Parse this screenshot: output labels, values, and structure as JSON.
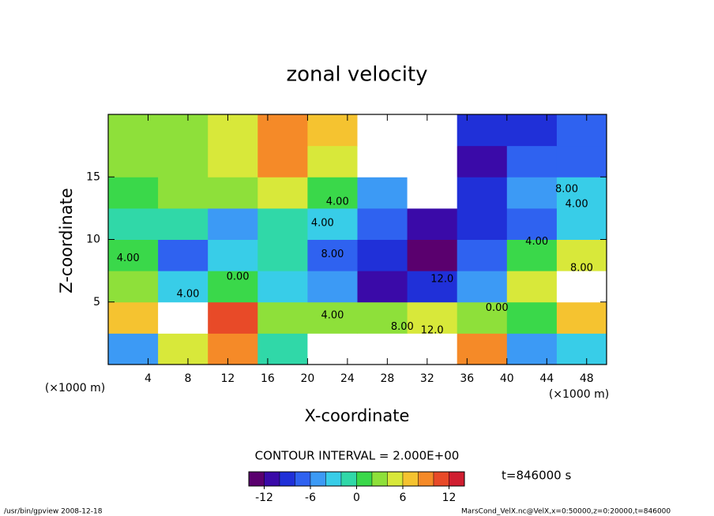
{
  "chart_data": {
    "type": "heatmap",
    "title": "zonal velocity",
    "x_label": "X-coordinate",
    "y_label": "Z-coordinate",
    "x_unit_label": "(×1000 m)",
    "y_unit_label": "(×1000 m)",
    "x": [
      2.5,
      7.5,
      12.5,
      17.5,
      22.5,
      27.5,
      32.5,
      37.5,
      42.5,
      47.5
    ],
    "y": [
      1.25,
      3.75,
      6.25,
      8.75,
      11.25,
      13.75,
      16.25,
      18.75
    ],
    "z": [
      [
        -6,
        4,
        8,
        -2,
        16,
        16,
        16,
        8,
        -6,
        -4
      ],
      [
        6,
        14,
        10,
        2,
        2,
        2,
        4,
        2,
        0,
        6
      ],
      [
        2,
        -4,
        0,
        -4,
        -6,
        -12,
        -10,
        -6,
        4,
        14
      ],
      [
        0,
        -8,
        -4,
        -2,
        -8,
        -10,
        -14,
        -8,
        0,
        4
      ],
      [
        -2,
        -2,
        -6,
        -2,
        -4,
        -8,
        -12,
        -10,
        -8,
        -4
      ],
      [
        0,
        2,
        2,
        4,
        0,
        -6,
        -16,
        -10,
        -6,
        -4
      ],
      [
        2,
        2,
        4,
        8,
        4,
        -16,
        -16,
        -12,
        -8,
        -8
      ],
      [
        2,
        2,
        4,
        8,
        6,
        -16,
        -16,
        -10,
        -10,
        -8
      ]
    ],
    "xlim": [
      0,
      50
    ],
    "xticks": [
      4,
      8,
      12,
      16,
      20,
      24,
      28,
      32,
      36,
      40,
      44,
      48
    ],
    "ylim": [
      0,
      20
    ],
    "yticks": [
      5,
      10,
      15
    ],
    "contour_labels": [
      {
        "text": "4.00",
        "x": 2,
        "y": 8.5
      },
      {
        "text": "4.00",
        "x": 8,
        "y": 5.6
      },
      {
        "text": "0.00",
        "x": 13,
        "y": 7
      },
      {
        "text": "4.00",
        "x": 22.5,
        "y": 3.9
      },
      {
        "text": "8.00",
        "x": 29.5,
        "y": 3
      },
      {
        "text": "12.0",
        "x": 32.5,
        "y": 2.7
      },
      {
        "text": "12.0",
        "x": 33.5,
        "y": 6.8
      },
      {
        "text": "0.00",
        "x": 39,
        "y": 4.5
      },
      {
        "text": "4.00",
        "x": 43,
        "y": 9.8
      },
      {
        "text": "8.00",
        "x": 47.5,
        "y": 7.7
      },
      {
        "text": "8.00",
        "x": 46,
        "y": 14
      },
      {
        "text": "4.00",
        "x": 47,
        "y": 12.8
      },
      {
        "text": "4.00",
        "x": 21.5,
        "y": 11.3
      },
      {
        "text": "8.00",
        "x": 22.5,
        "y": 8.8
      },
      {
        "text": "4.00",
        "x": 23,
        "y": 13
      }
    ],
    "colorbar": {
      "levels": [
        -14,
        -12,
        -10,
        -8,
        -6,
        -4,
        -2,
        0,
        2,
        4,
        6,
        8,
        10,
        12,
        14
      ],
      "ticks": [
        -12,
        -6,
        0,
        6,
        12
      ],
      "colors": [
        "#5a006e",
        "#3a0aa8",
        "#2030d8",
        "#2f62f0",
        "#3c9af5",
        "#38cde8",
        "#30d8a8",
        "#3ad84a",
        "#8ee03a",
        "#d8e83a",
        "#f5c330",
        "#f58a28",
        "#e84a28",
        "#d01e30"
      ],
      "over_color": "#ffffff",
      "under_color": "#ffffff"
    },
    "contour_interval_label": "CONTOUR INTERVAL = 2.000E+00",
    "time_label": "t=846000 s",
    "footer_left": "/usr/bin/gpview   2008-12-18",
    "footer_right": "MarsCond_VelX.nc@VelX,x=0:50000,z=0:20000,t=846000"
  }
}
